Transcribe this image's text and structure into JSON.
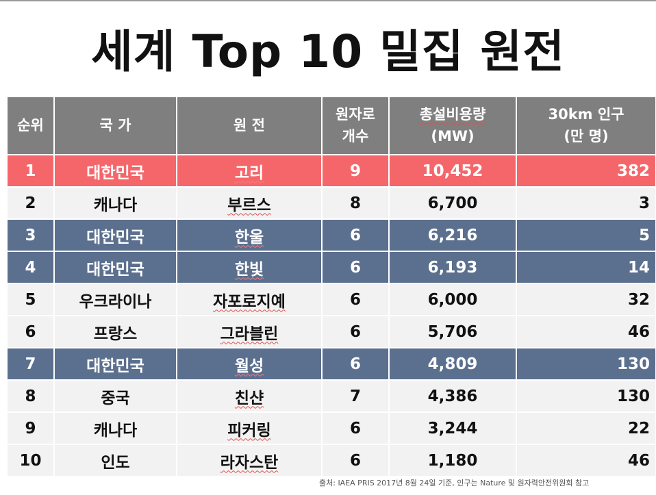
{
  "title": "세계 Top 10 밀집 원전",
  "headers": {
    "rank": "순위",
    "country": "국 가",
    "plant": "원 전",
    "reactors_line1": "원자로",
    "reactors_line2": "개수",
    "capacity_line1": "총설비용량",
    "capacity_line2": "(MW)",
    "population_line1": "30km 인구",
    "population_line2": "(만 명)"
  },
  "rows": [
    {
      "rank": "1",
      "country": "대한민국",
      "plant": "고리",
      "reactors": "9",
      "capacity": "10,452",
      "population": "382",
      "style": "red"
    },
    {
      "rank": "2",
      "country": "캐나다",
      "plant": "부르스",
      "reactors": "8",
      "capacity": "6,700",
      "population": "3",
      "style": "light"
    },
    {
      "rank": "3",
      "country": "대한민국",
      "plant": "한울",
      "reactors": "6",
      "capacity": "6,216",
      "population": "5",
      "style": "blue"
    },
    {
      "rank": "4",
      "country": "대한민국",
      "plant": "한빛",
      "reactors": "6",
      "capacity": "6,193",
      "population": "14",
      "style": "blue"
    },
    {
      "rank": "5",
      "country": "우크라이나",
      "plant": "자포로지예",
      "reactors": "6",
      "capacity": "6,000",
      "population": "32",
      "style": "light"
    },
    {
      "rank": "6",
      "country": "프랑스",
      "plant": "그라블린",
      "reactors": "6",
      "capacity": "5,706",
      "population": "46",
      "style": "light"
    },
    {
      "rank": "7",
      "country": "대한민국",
      "plant": "월성",
      "reactors": "6",
      "capacity": "4,809",
      "population": "130",
      "style": "blue"
    },
    {
      "rank": "8",
      "country": "중국",
      "plant": "친샨",
      "reactors": "7",
      "capacity": "4,386",
      "population": "130",
      "style": "light"
    },
    {
      "rank": "9",
      "country": "캐나다",
      "plant": "피커링",
      "reactors": "6",
      "capacity": "3,244",
      "population": "22",
      "style": "light"
    },
    {
      "rank": "10",
      "country": "인도",
      "plant": "라자스탄",
      "reactors": "6",
      "capacity": "1,180",
      "population": "46",
      "style": "light"
    }
  ],
  "source_note": "출처: IAEA PRIS 2017년 8월 24일 기준, 인구는 Nature 및 원자력안전위원회 참고",
  "colors": {
    "header_bg": "#7f7f7f",
    "highlight_red": "#f5666a",
    "highlight_blue": "#5b6f8e",
    "row_light": "#f2f2f2"
  }
}
